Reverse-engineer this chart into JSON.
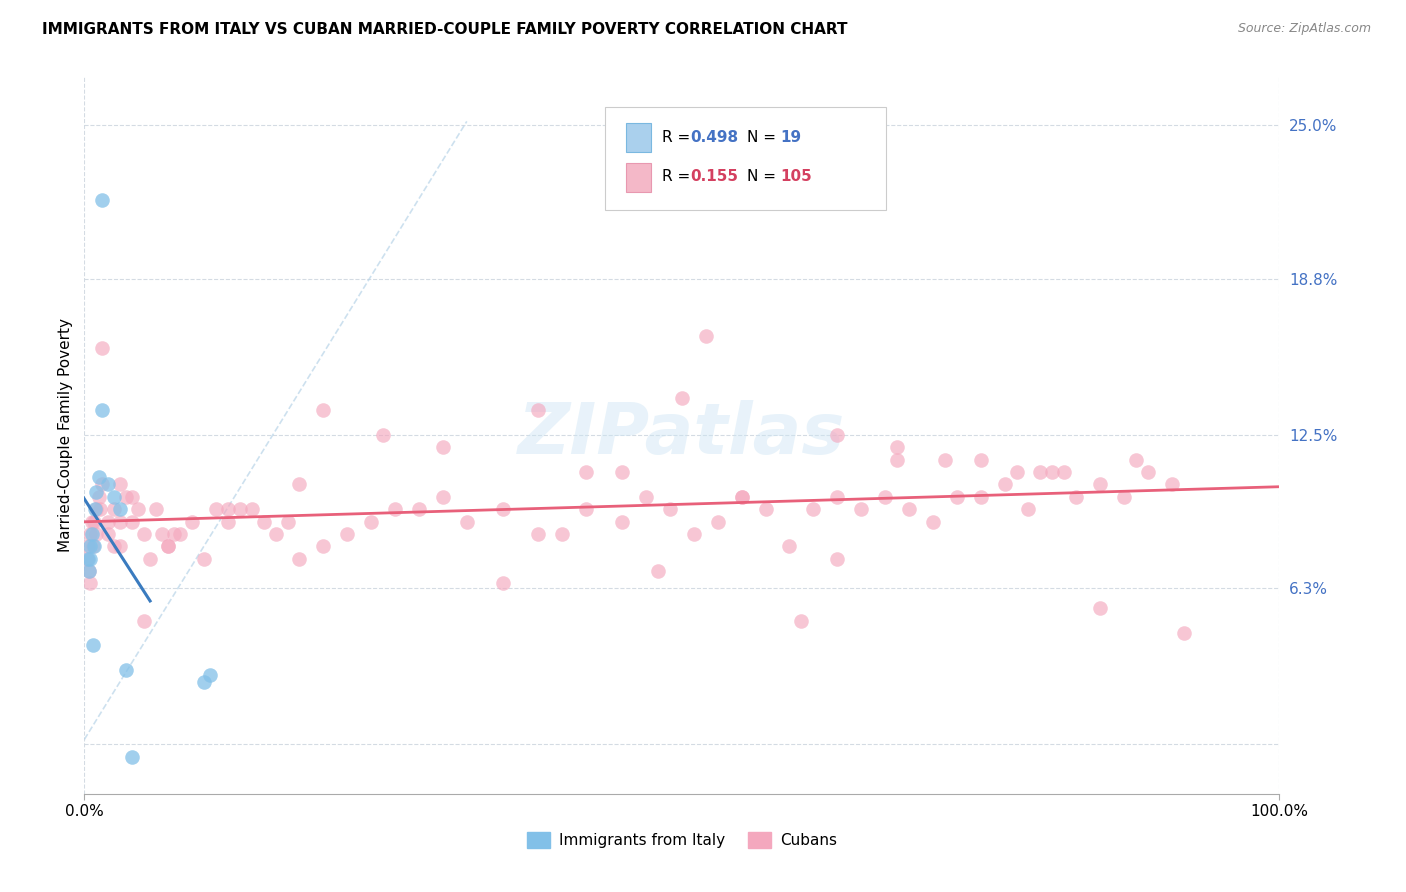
{
  "title": "IMMIGRANTS FROM ITALY VS CUBAN MARRIED-COUPLE FAMILY POVERTY CORRELATION CHART",
  "source": "Source: ZipAtlas.com",
  "ylabel_label": "Married-Couple Family Poverty",
  "legend_label1": "Immigrants from Italy",
  "legend_label2": "Cubans",
  "R1": "0.498",
  "N1": "19",
  "R2": "0.155",
  "N2": "105",
  "color_blue": "#82c0e8",
  "color_pink": "#f4a8be",
  "color_blue_line": "#3a7bbf",
  "color_pink_line": "#e8607a",
  "color_dashed": "#b8d4e8",
  "italy_x": [
    0.3,
    0.4,
    0.5,
    0.5,
    0.6,
    0.7,
    0.8,
    0.9,
    1.0,
    1.2,
    1.5,
    2.0,
    2.5,
    3.0,
    3.5,
    4.0,
    10.0,
    10.5,
    1.5
  ],
  "italy_y": [
    7.5,
    7.0,
    7.5,
    8.0,
    8.5,
    4.0,
    8.0,
    9.5,
    10.2,
    10.8,
    13.5,
    10.5,
    10.0,
    9.5,
    3.0,
    -0.5,
    2.5,
    2.8,
    22.0
  ],
  "cuba_x": [
    0.2,
    0.3,
    0.4,
    0.5,
    0.5,
    0.6,
    0.7,
    0.8,
    1.0,
    1.0,
    1.2,
    1.3,
    1.5,
    1.5,
    2.0,
    2.0,
    2.5,
    2.5,
    3.0,
    3.0,
    3.5,
    4.0,
    4.0,
    4.5,
    5.0,
    5.5,
    6.0,
    6.5,
    7.0,
    7.5,
    8.0,
    9.0,
    10.0,
    11.0,
    12.0,
    13.0,
    14.0,
    15.0,
    16.0,
    17.0,
    18.0,
    20.0,
    22.0,
    24.0,
    26.0,
    28.0,
    30.0,
    32.0,
    35.0,
    38.0,
    40.0,
    42.0,
    45.0,
    47.0,
    49.0,
    51.0,
    53.0,
    55.0,
    57.0,
    59.0,
    61.0,
    63.0,
    65.0,
    67.0,
    69.0,
    71.0,
    73.0,
    75.0,
    77.0,
    79.0,
    81.0,
    83.0,
    85.0,
    87.0,
    89.0,
    91.0,
    3.0,
    7.0,
    12.0,
    25.0,
    38.0,
    50.0,
    63.0,
    72.0,
    80.0,
    88.0,
    5.0,
    18.0,
    30.0,
    45.0,
    55.0,
    68.0,
    75.0,
    85.0,
    20.0,
    42.0,
    60.0,
    78.0,
    35.0,
    52.0,
    68.0,
    82.0,
    92.0,
    48.0,
    63.0
  ],
  "cuba_y": [
    7.5,
    8.0,
    7.0,
    8.5,
    6.5,
    9.0,
    8.0,
    9.0,
    8.5,
    9.5,
    10.0,
    9.5,
    16.0,
    10.5,
    8.5,
    9.0,
    9.5,
    8.0,
    10.5,
    9.0,
    10.0,
    9.0,
    10.0,
    9.5,
    8.5,
    7.5,
    9.5,
    8.5,
    8.0,
    8.5,
    8.5,
    9.0,
    7.5,
    9.5,
    9.0,
    9.5,
    9.5,
    9.0,
    8.5,
    9.0,
    7.5,
    8.0,
    8.5,
    9.0,
    9.5,
    9.5,
    10.0,
    9.0,
    9.5,
    8.5,
    8.5,
    9.5,
    9.0,
    10.0,
    9.5,
    8.5,
    9.0,
    10.0,
    9.5,
    8.0,
    9.5,
    10.0,
    9.5,
    10.0,
    9.5,
    9.0,
    10.0,
    10.0,
    10.5,
    9.5,
    11.0,
    10.0,
    10.5,
    10.0,
    11.0,
    10.5,
    8.0,
    8.0,
    9.5,
    12.5,
    13.5,
    14.0,
    12.5,
    11.5,
    11.0,
    11.5,
    5.0,
    10.5,
    12.0,
    11.0,
    10.0,
    11.5,
    11.5,
    5.5,
    13.5,
    11.0,
    5.0,
    11.0,
    6.5,
    16.5,
    12.0,
    11.0,
    4.5,
    7.0,
    7.5
  ],
  "xlim": [
    0,
    100
  ],
  "ylim": [
    -2,
    27
  ],
  "ytick_vals": [
    0,
    6.3,
    12.5,
    18.8,
    25.0
  ],
  "ytick_labels": [
    "",
    "6.3%",
    "12.5%",
    "18.8%",
    "25.0%"
  ],
  "xtick_vals": [
    0,
    100
  ],
  "xtick_labels": [
    "0.0%",
    "100.0%"
  ]
}
